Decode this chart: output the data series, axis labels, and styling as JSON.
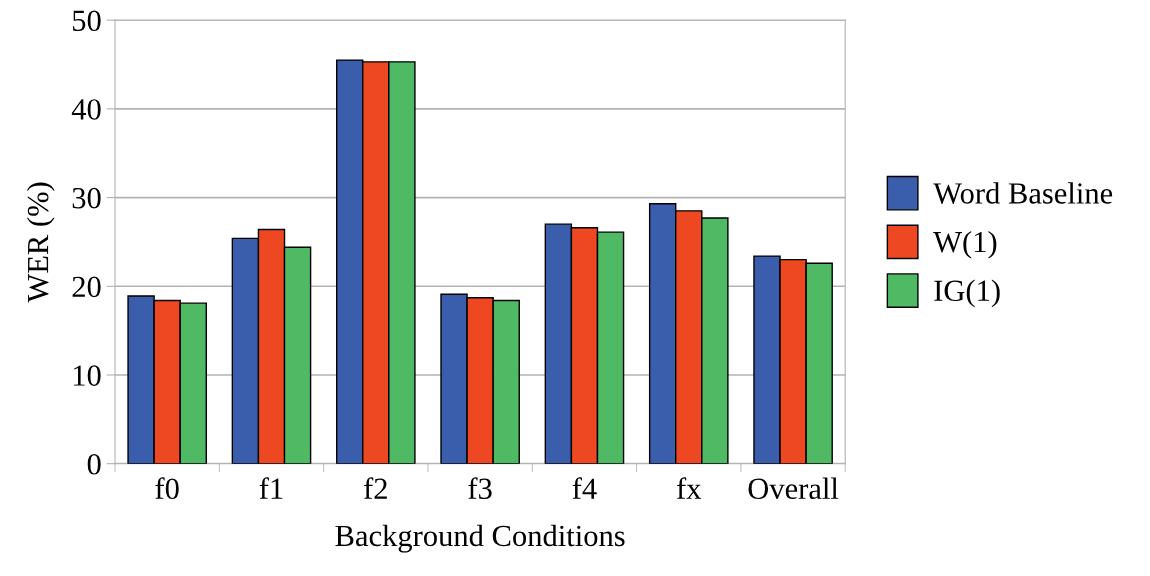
{
  "chart_data": {
    "type": "bar",
    "xlabel": "Background Conditions",
    "ylabel": "WER (%)",
    "categories": [
      "f0",
      "f1",
      "f2",
      "f3",
      "f4",
      "fx",
      "Overall"
    ],
    "series": [
      {
        "name": "Word Baseline",
        "color": "#3a5eab",
        "values": [
          18.9,
          25.4,
          45.5,
          19.1,
          27.0,
          29.3,
          23.4
        ]
      },
      {
        "name": "W(1)",
        "color": "#ee4823",
        "values": [
          18.4,
          26.4,
          45.3,
          18.7,
          26.6,
          28.5,
          23.0
        ]
      },
      {
        "name": "IG(1)",
        "color": "#4fba63",
        "values": [
          18.1,
          24.4,
          45.3,
          18.4,
          26.1,
          27.7,
          22.6
        ]
      }
    ],
    "ylim": [
      0,
      50
    ],
    "yticks": [
      0,
      10,
      20,
      30,
      40,
      50
    ],
    "grid": "y",
    "legend": "right"
  }
}
